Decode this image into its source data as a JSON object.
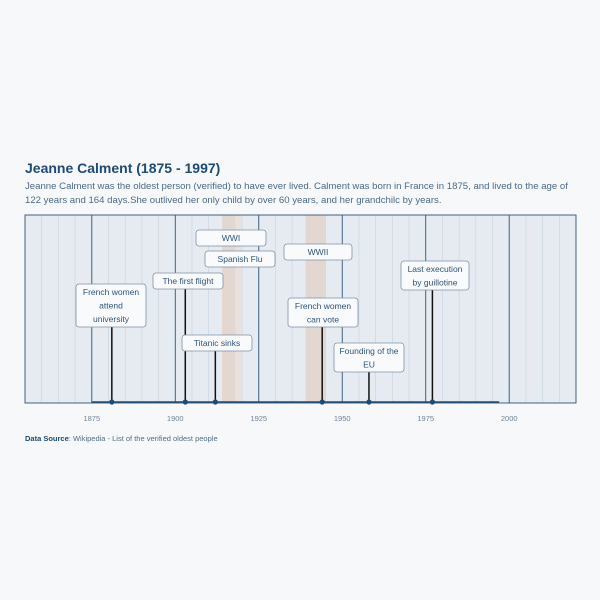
{
  "chart_data": {
    "type": "timeline",
    "title": "Jeanne Calment (1875 - 1997)",
    "subtitle": "Jeanne Calment was the oldest person (verified) to have ever lived. Calment was born in France in 1875, and lived to the age of 122 years and 164 days.She outlived her only child by over 60 years, and her grandchilc by years.",
    "xlim": [
      1855,
      2020
    ],
    "life_span": [
      1875,
      1997
    ],
    "x_ticks": [
      1875,
      1900,
      1925,
      1950,
      1975,
      2000
    ],
    "grid": true,
    "periods": [
      {
        "label": "WWI",
        "start": 1914,
        "end": 1918
      },
      {
        "label": "Spanish Flu",
        "start": 1918,
        "end": 1920
      },
      {
        "label": "WWII",
        "start": 1939,
        "end": 1945
      }
    ],
    "events": [
      {
        "label": [
          "French women",
          "attend",
          "university"
        ],
        "year": 1881
      },
      {
        "label": [
          "The first flight"
        ],
        "year": 1903
      },
      {
        "label": [
          "Titanic sinks"
        ],
        "year": 1912
      },
      {
        "label": [
          "French women",
          "can vote"
        ],
        "year": 1944
      },
      {
        "label": [
          "Founding of the",
          "EU"
        ],
        "year": 1958
      },
      {
        "label": [
          "Last execution",
          "by guillotine"
        ],
        "year": 1977
      }
    ]
  },
  "source": {
    "label": "Data Source",
    "text": ": Wikipedia - List of the verified oldest people"
  },
  "colors": {
    "plot_bg": "#e5ebf0",
    "period_fill": "#e3d3cc",
    "event_line": "#111111",
    "dot": "#1d4b73",
    "axis": "#1d4b73"
  }
}
